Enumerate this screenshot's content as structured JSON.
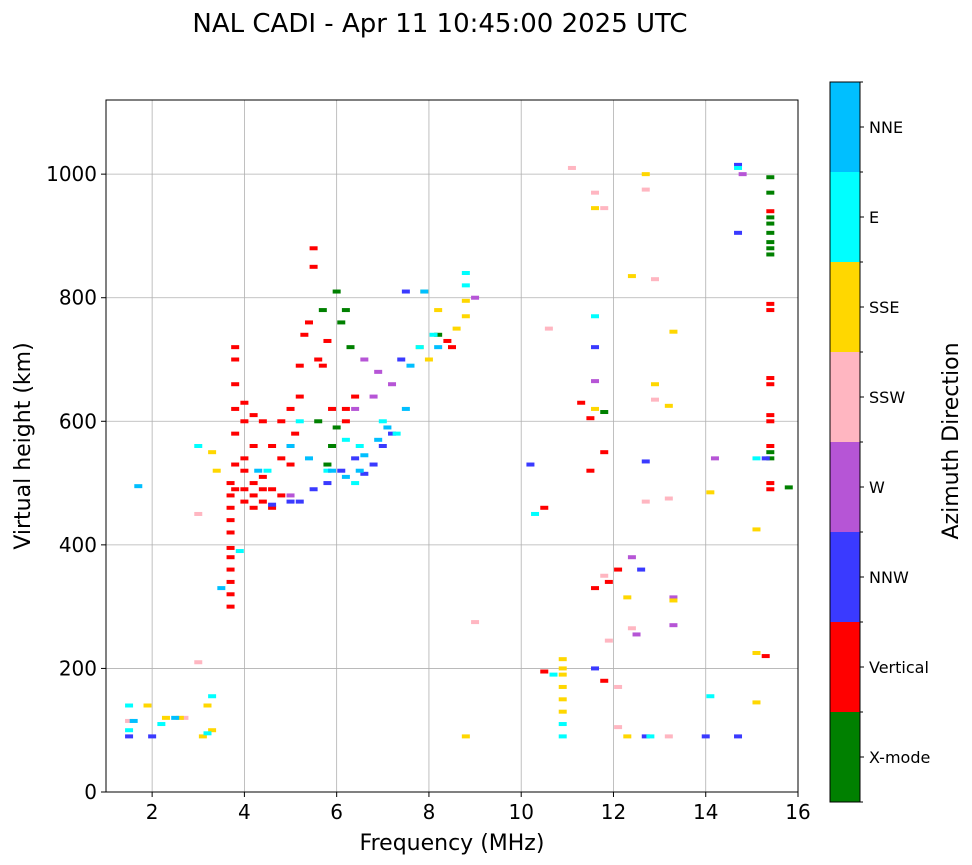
{
  "chart_data": {
    "type": "scatter",
    "title": "NAL CADI - Apr 11 10:45:00 2025 UTC",
    "xlabel": "Frequency (MHz)",
    "ylabel": "Virtual height (km)",
    "xlim": [
      1,
      16
    ],
    "ylim": [
      0,
      1120
    ],
    "xticks": [
      2,
      4,
      6,
      8,
      10,
      12,
      14,
      16
    ],
    "yticks": [
      0,
      200,
      400,
      600,
      800,
      1000
    ],
    "grid": true,
    "colorbar": {
      "label": "Azimuth Direction",
      "categories": [
        {
          "name": "X-mode",
          "color": "#008000"
        },
        {
          "name": "Vertical",
          "color": "#ff0000"
        },
        {
          "name": "NNW",
          "color": "#3a3aff"
        },
        {
          "name": "W",
          "color": "#b655d6"
        },
        {
          "name": "SSW",
          "color": "#ffb6c1"
        },
        {
          "name": "SSE",
          "color": "#ffd700"
        },
        {
          "name": "E",
          "color": "#00ffff"
        },
        {
          "name": "NNE",
          "color": "#00bfff"
        }
      ]
    },
    "series": [
      {
        "name": "Vertical",
        "points": [
          [
            3.7,
            300
          ],
          [
            3.7,
            320
          ],
          [
            3.7,
            340
          ],
          [
            3.7,
            360
          ],
          [
            3.7,
            380
          ],
          [
            3.7,
            395
          ],
          [
            3.7,
            420
          ],
          [
            3.7,
            440
          ],
          [
            3.7,
            460
          ],
          [
            3.7,
            480
          ],
          [
            3.7,
            500
          ],
          [
            3.8,
            490
          ],
          [
            3.8,
            530
          ],
          [
            3.8,
            580
          ],
          [
            3.8,
            620
          ],
          [
            3.8,
            660
          ],
          [
            3.8,
            700
          ],
          [
            3.8,
            720
          ],
          [
            4.0,
            470
          ],
          [
            4.0,
            490
          ],
          [
            4.0,
            520
          ],
          [
            4.0,
            540
          ],
          [
            4.0,
            600
          ],
          [
            4.0,
            630
          ],
          [
            4.2,
            460
          ],
          [
            4.2,
            480
          ],
          [
            4.2,
            500
          ],
          [
            4.2,
            560
          ],
          [
            4.2,
            610
          ],
          [
            4.4,
            470
          ],
          [
            4.4,
            490
          ],
          [
            4.4,
            510
          ],
          [
            4.4,
            600
          ],
          [
            4.6,
            460
          ],
          [
            4.6,
            490
          ],
          [
            4.6,
            560
          ],
          [
            4.8,
            480
          ],
          [
            4.8,
            540
          ],
          [
            4.8,
            600
          ],
          [
            5.0,
            530
          ],
          [
            5.0,
            560
          ],
          [
            5.0,
            620
          ],
          [
            5.1,
            580
          ],
          [
            5.2,
            640
          ],
          [
            5.2,
            690
          ],
          [
            5.3,
            740
          ],
          [
            5.4,
            760
          ],
          [
            5.5,
            880
          ],
          [
            5.5,
            850
          ],
          [
            5.6,
            700
          ],
          [
            5.7,
            690
          ],
          [
            5.8,
            730
          ],
          [
            5.9,
            620
          ],
          [
            6.2,
            620
          ],
          [
            6.2,
            600
          ],
          [
            6.4,
            640
          ],
          [
            8.4,
            730
          ],
          [
            8.5,
            720
          ],
          [
            10.5,
            460
          ],
          [
            10.5,
            195
          ],
          [
            11.3,
            630
          ],
          [
            11.5,
            605
          ],
          [
            11.5,
            520
          ],
          [
            11.6,
            330
          ],
          [
            11.8,
            550
          ],
          [
            11.8,
            180
          ],
          [
            11.9,
            340
          ],
          [
            12.1,
            360
          ],
          [
            15.3,
            220
          ],
          [
            15.4,
            500
          ],
          [
            15.4,
            490
          ],
          [
            15.4,
            560
          ],
          [
            15.4,
            600
          ],
          [
            15.4,
            610
          ],
          [
            15.4,
            660
          ],
          [
            15.4,
            670
          ],
          [
            15.4,
            790
          ],
          [
            15.4,
            780
          ],
          [
            15.4,
            940
          ]
        ]
      },
      {
        "name": "X-mode",
        "points": [
          [
            5.8,
            530
          ],
          [
            5.9,
            560
          ],
          [
            6.0,
            590
          ],
          [
            6.0,
            810
          ],
          [
            6.1,
            760
          ],
          [
            6.2,
            780
          ],
          [
            6.3,
            720
          ],
          [
            5.7,
            780
          ],
          [
            5.6,
            600
          ],
          [
            8.2,
            740
          ],
          [
            11.8,
            615
          ],
          [
            15.4,
            550
          ],
          [
            15.4,
            540
          ],
          [
            15.4,
            870
          ],
          [
            15.4,
            880
          ],
          [
            15.4,
            890
          ],
          [
            15.4,
            905
          ],
          [
            15.4,
            920
          ],
          [
            15.4,
            930
          ],
          [
            15.4,
            970
          ],
          [
            15.4,
            995
          ],
          [
            15.8,
            493
          ]
        ]
      },
      {
        "name": "NNW",
        "points": [
          [
            1.5,
            90
          ],
          [
            2.0,
            90
          ],
          [
            4.6,
            465
          ],
          [
            5.0,
            470
          ],
          [
            5.2,
            470
          ],
          [
            5.5,
            490
          ],
          [
            5.8,
            500
          ],
          [
            6.1,
            520
          ],
          [
            6.4,
            540
          ],
          [
            6.6,
            515
          ],
          [
            6.8,
            530
          ],
          [
            7.0,
            560
          ],
          [
            7.2,
            580
          ],
          [
            7.4,
            700
          ],
          [
            7.5,
            810
          ],
          [
            10.2,
            530
          ],
          [
            11.6,
            200
          ],
          [
            11.6,
            720
          ],
          [
            12.6,
            360
          ],
          [
            12.7,
            535
          ],
          [
            12.7,
            90
          ],
          [
            14.0,
            90
          ],
          [
            14.7,
            905
          ],
          [
            14.7,
            90
          ],
          [
            14.7,
            1015
          ],
          [
            15.3,
            540
          ]
        ]
      },
      {
        "name": "W",
        "points": [
          [
            5.0,
            480
          ],
          [
            6.4,
            620
          ],
          [
            6.6,
            700
          ],
          [
            6.8,
            640
          ],
          [
            6.9,
            680
          ],
          [
            7.2,
            660
          ],
          [
            9.0,
            800
          ],
          [
            11.6,
            665
          ],
          [
            12.4,
            380
          ],
          [
            12.5,
            255
          ],
          [
            13.3,
            270
          ],
          [
            13.3,
            315
          ],
          [
            14.2,
            540
          ],
          [
            14.8,
            1000
          ]
        ]
      },
      {
        "name": "SSW",
        "points": [
          [
            1.5,
            115
          ],
          [
            2.7,
            120
          ],
          [
            3.0,
            450
          ],
          [
            3.0,
            210
          ],
          [
            9.0,
            275
          ],
          [
            10.6,
            750
          ],
          [
            11.1,
            1010
          ],
          [
            11.6,
            970
          ],
          [
            11.8,
            945
          ],
          [
            11.8,
            350
          ],
          [
            11.9,
            245
          ],
          [
            12.1,
            170
          ],
          [
            12.1,
            105
          ],
          [
            12.4,
            265
          ],
          [
            12.7,
            470
          ],
          [
            12.7,
            975
          ],
          [
            12.9,
            830
          ],
          [
            12.9,
            635
          ],
          [
            13.2,
            475
          ],
          [
            13.2,
            90
          ]
        ]
      },
      {
        "name": "SSE",
        "points": [
          [
            1.9,
            140
          ],
          [
            2.3,
            120
          ],
          [
            2.6,
            120
          ],
          [
            3.1,
            90
          ],
          [
            3.2,
            140
          ],
          [
            3.3,
            100
          ],
          [
            3.3,
            550
          ],
          [
            3.4,
            520
          ],
          [
            7.8,
            720
          ],
          [
            7.9,
            810
          ],
          [
            8.0,
            700
          ],
          [
            8.2,
            780
          ],
          [
            8.6,
            750
          ],
          [
            8.8,
            795
          ],
          [
            8.8,
            770
          ],
          [
            8.8,
            90
          ],
          [
            10.9,
            130
          ],
          [
            10.9,
            150
          ],
          [
            10.9,
            170
          ],
          [
            10.9,
            190
          ],
          [
            10.9,
            200
          ],
          [
            10.9,
            215
          ],
          [
            11.6,
            945
          ],
          [
            11.6,
            620
          ],
          [
            12.3,
            90
          ],
          [
            12.3,
            315
          ],
          [
            12.4,
            835
          ],
          [
            12.7,
            1000
          ],
          [
            12.9,
            660
          ],
          [
            13.2,
            625
          ],
          [
            13.3,
            745
          ],
          [
            13.3,
            310
          ],
          [
            14.1,
            485
          ],
          [
            15.1,
            425
          ],
          [
            15.1,
            225
          ],
          [
            15.1,
            145
          ]
        ]
      },
      {
        "name": "E",
        "points": [
          [
            1.5,
            100
          ],
          [
            1.5,
            140
          ],
          [
            2.2,
            110
          ],
          [
            3.0,
            560
          ],
          [
            3.2,
            95
          ],
          [
            3.3,
            155
          ],
          [
            3.9,
            390
          ],
          [
            4.5,
            520
          ],
          [
            5.2,
            600
          ],
          [
            5.8,
            520
          ],
          [
            6.2,
            570
          ],
          [
            6.4,
            500
          ],
          [
            6.5,
            560
          ],
          [
            7.0,
            600
          ],
          [
            7.3,
            580
          ],
          [
            7.8,
            720
          ],
          [
            8.1,
            740
          ],
          [
            8.8,
            840
          ],
          [
            8.8,
            820
          ],
          [
            10.3,
            450
          ],
          [
            10.7,
            190
          ],
          [
            10.9,
            90
          ],
          [
            10.9,
            110
          ],
          [
            11.6,
            770
          ],
          [
            12.8,
            90
          ],
          [
            14.1,
            155
          ],
          [
            14.7,
            1010
          ],
          [
            15.1,
            540
          ]
        ]
      },
      {
        "name": "NNE",
        "points": [
          [
            1.6,
            115
          ],
          [
            1.7,
            495
          ],
          [
            2.5,
            120
          ],
          [
            3.5,
            330
          ],
          [
            4.3,
            520
          ],
          [
            5.0,
            560
          ],
          [
            5.4,
            540
          ],
          [
            5.9,
            520
          ],
          [
            6.2,
            510
          ],
          [
            6.5,
            520
          ],
          [
            6.6,
            545
          ],
          [
            6.9,
            570
          ],
          [
            7.1,
            590
          ],
          [
            7.5,
            620
          ],
          [
            7.6,
            690
          ],
          [
            7.9,
            810
          ],
          [
            8.2,
            720
          ]
        ]
      }
    ]
  }
}
